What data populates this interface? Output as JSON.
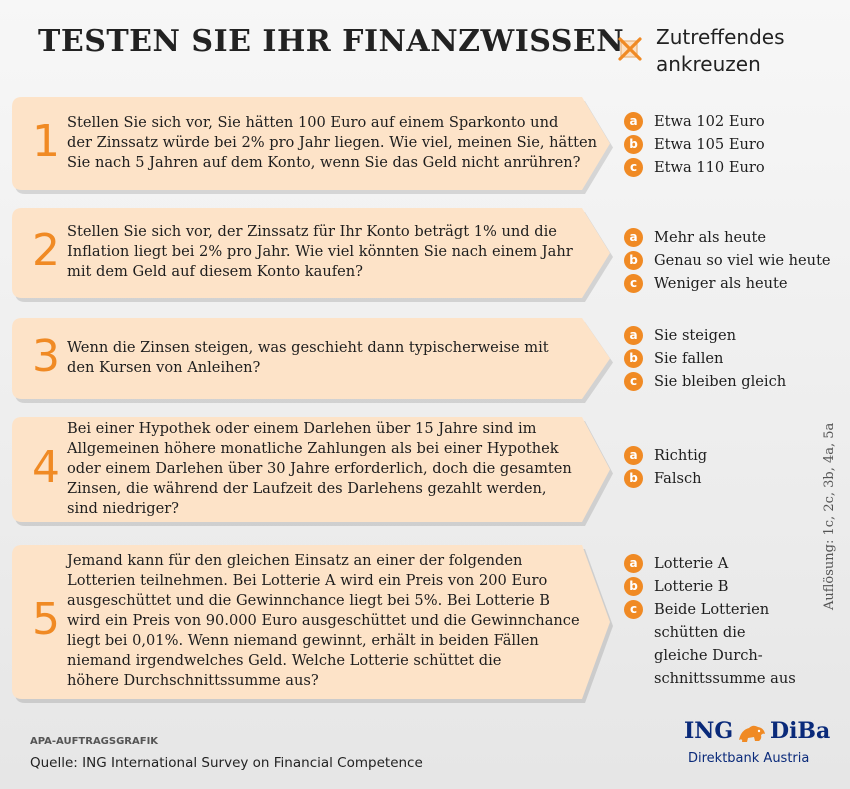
{
  "title": "TESTEN SIE IHR FINANZWISSEN",
  "legend": {
    "icon": "crossed-checkbox-icon",
    "line1": "Zutreffendes",
    "line2": "ankreuzen"
  },
  "colors": {
    "accent": "#f08a24",
    "card": "#fde3c8",
    "logo_blue": "#0a2a7a",
    "logo_orange": "#f08a24"
  },
  "questions": [
    {
      "number": "1",
      "lines": [
        "Stellen Sie sich vor, Sie hätten 100 Euro auf einem Sparkonto und",
        "der Zinssatz würde bei 2% pro Jahr liegen. Wie viel, meinen Sie, hätten",
        "Sie nach 5 Jahren auf dem Konto, wenn Sie das Geld nicht anrühren?"
      ],
      "options": [
        {
          "letter": "a",
          "lines": [
            "Etwa 102 Euro"
          ]
        },
        {
          "letter": "b",
          "lines": [
            "Etwa 105 Euro"
          ]
        },
        {
          "letter": "c",
          "lines": [
            "Etwa 110 Euro"
          ]
        }
      ]
    },
    {
      "number": "2",
      "lines": [
        "Stellen Sie sich vor, der Zinssatz für Ihr Konto beträgt 1% und die",
        "Inflation liegt bei 2% pro Jahr. Wie viel könnten Sie nach einem Jahr",
        "mit dem Geld auf diesem Konto kaufen?"
      ],
      "options": [
        {
          "letter": "a",
          "lines": [
            "Mehr als heute"
          ]
        },
        {
          "letter": "b",
          "lines": [
            "Genau so viel wie heute"
          ]
        },
        {
          "letter": "c",
          "lines": [
            "Weniger als heute"
          ]
        }
      ]
    },
    {
      "number": "3",
      "lines": [
        "Wenn die Zinsen steigen, was geschieht dann typischerweise mit",
        "den Kursen von Anleihen?"
      ],
      "options": [
        {
          "letter": "a",
          "lines": [
            "Sie steigen"
          ]
        },
        {
          "letter": "b",
          "lines": [
            "Sie fallen"
          ]
        },
        {
          "letter": "c",
          "lines": [
            "Sie bleiben gleich"
          ]
        }
      ]
    },
    {
      "number": "4",
      "lines": [
        "Bei einer Hypothek oder einem Darlehen über 15 Jahre sind im",
        "Allgemeinen höhere monatliche Zahlungen als bei einer Hypothek",
        "oder einem Darlehen über 30 Jahre erforderlich, doch die gesamten",
        "Zinsen, die während der Laufzeit des Darlehens gezahlt werden,",
        "sind niedriger?"
      ],
      "options": [
        {
          "letter": "a",
          "lines": [
            "Richtig"
          ]
        },
        {
          "letter": "b",
          "lines": [
            "Falsch"
          ]
        }
      ]
    },
    {
      "number": "5",
      "lines": [
        "Jemand kann für den gleichen Einsatz an einer der folgenden",
        "Lotterien teilnehmen. Bei Lotterie A wird ein Preis von 200 Euro",
        "ausgeschüttet und die Gewinnchance liegt bei 5%. Bei Lotterie B",
        "wird ein Preis von 90.000 Euro ausgeschüttet und die Gewinnchance",
        "liegt bei 0,01%. Wenn niemand gewinnt, erhält in beiden Fällen",
        "niemand irgendwelches Geld. Welche Lotterie schüttet die",
        "höhere Durchschnittssumme aus?"
      ],
      "options": [
        {
          "letter": "a",
          "lines": [
            "Lotterie A"
          ]
        },
        {
          "letter": "b",
          "lines": [
            "Lotterie B"
          ]
        },
        {
          "letter": "c",
          "lines": [
            "Beide Lotterien",
            "schütten die",
            "gleiche Durch-",
            "schnittssumme  aus"
          ]
        }
      ]
    }
  ],
  "answers": "Auflösung: 1c, 2c, 3b, 4a, 5a",
  "credit": "APA-AUFTRAGSGRAFIK",
  "source": "Quelle: ING International Survey on Financial Competence",
  "logo": {
    "left": "ING",
    "right": "DiBa",
    "icon": "lion-icon",
    "subtitle": "Direktbank Austria"
  }
}
